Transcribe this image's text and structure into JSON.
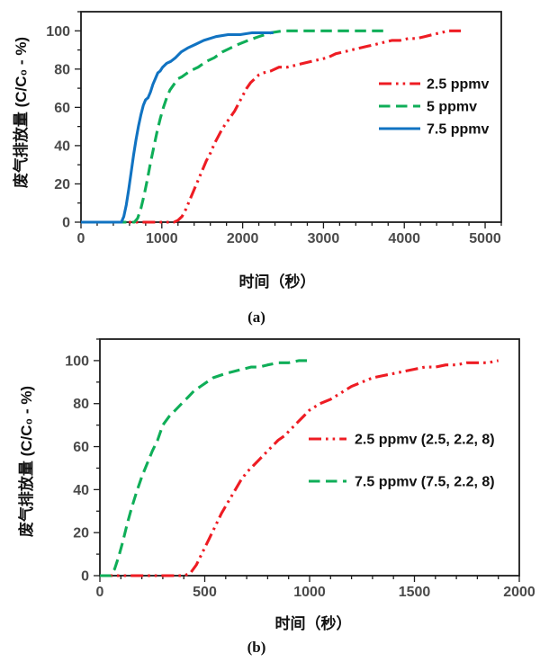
{
  "page": {
    "background": "#ffffff"
  },
  "styles": {
    "axis_color": "#1c1c1c",
    "tick_label_color": "#4a4a4a",
    "legend_text_color": "#111111",
    "series_colors": {
      "red": "#ee1c23",
      "green": "#0fae58",
      "blue": "#1173c2"
    }
  },
  "chart_data": [
    {
      "id": "a",
      "type": "line",
      "caption": "(a)",
      "xlabel": "时间（秒）",
      "ylabel": "废气排放量 (C/C₀ - %)",
      "grid": false,
      "legend_position": "inside-right",
      "x_axis": {
        "min": 0,
        "max": 5200,
        "major_step": 1000,
        "minor_step": 200,
        "tick_labels": [
          0,
          1000,
          2000,
          3000,
          4000,
          5000
        ]
      },
      "y_axis": {
        "min": 0,
        "max": 110,
        "major_step": 20,
        "minor_step": 10,
        "tick_labels": [
          0,
          20,
          40,
          60,
          80,
          100
        ]
      },
      "series": [
        {
          "name": "2.5 ppmv",
          "color": "#ee1c23",
          "line_style": "dash-dot-dot",
          "points": [
            [
              0,
              0
            ],
            [
              250,
              0
            ],
            [
              500,
              0
            ],
            [
              750,
              0
            ],
            [
              1000,
              0
            ],
            [
              1150,
              0
            ],
            [
              1200,
              1
            ],
            [
              1250,
              3
            ],
            [
              1300,
              7
            ],
            [
              1350,
              12
            ],
            [
              1400,
              17
            ],
            [
              1450,
              22
            ],
            [
              1500,
              27
            ],
            [
              1550,
              32
            ],
            [
              1600,
              36
            ],
            [
              1650,
              41
            ],
            [
              1700,
              45
            ],
            [
              1750,
              49
            ],
            [
              1800,
              52
            ],
            [
              1850,
              55
            ],
            [
              1900,
              58
            ],
            [
              1950,
              62
            ],
            [
              2000,
              66
            ],
            [
              2050,
              70
            ],
            [
              2100,
              73
            ],
            [
              2150,
              75
            ],
            [
              2200,
              77
            ],
            [
              2250,
              78
            ],
            [
              2350,
              79
            ],
            [
              2450,
              81
            ],
            [
              2550,
              81
            ],
            [
              2650,
              82
            ],
            [
              2750,
              83
            ],
            [
              2850,
              84
            ],
            [
              2950,
              85
            ],
            [
              3050,
              86
            ],
            [
              3150,
              88
            ],
            [
              3250,
              89
            ],
            [
              3350,
              90
            ],
            [
              3450,
              91
            ],
            [
              3550,
              92
            ],
            [
              3650,
              93
            ],
            [
              3750,
              94
            ],
            [
              3850,
              95
            ],
            [
              3950,
              95
            ],
            [
              4050,
              96
            ],
            [
              4150,
              96
            ],
            [
              4250,
              97
            ],
            [
              4350,
              98
            ],
            [
              4450,
              99
            ],
            [
              4550,
              100
            ],
            [
              4700,
              100
            ]
          ]
        },
        {
          "name": "5 ppmv",
          "color": "#0fae58",
          "line_style": "dashed",
          "points": [
            [
              0,
              0
            ],
            [
              250,
              0
            ],
            [
              500,
              0
            ],
            [
              660,
              0
            ],
            [
              700,
              2
            ],
            [
              740,
              7
            ],
            [
              780,
              14
            ],
            [
              820,
              22
            ],
            [
              860,
              31
            ],
            [
              900,
              39
            ],
            [
              940,
              47
            ],
            [
              980,
              54
            ],
            [
              1020,
              60
            ],
            [
              1060,
              65
            ],
            [
              1100,
              69
            ],
            [
              1150,
              72
            ],
            [
              1200,
              75
            ],
            [
              1250,
              76
            ],
            [
              1350,
              79
            ],
            [
              1450,
              81
            ],
            [
              1550,
              84
            ],
            [
              1650,
              86
            ],
            [
              1750,
              89
            ],
            [
              1850,
              91
            ],
            [
              1950,
              93
            ],
            [
              2070,
              95
            ],
            [
              2200,
              97
            ],
            [
              2350,
              99
            ],
            [
              2500,
              100
            ],
            [
              2750,
              100
            ],
            [
              3000,
              100
            ],
            [
              3250,
              100
            ],
            [
              3500,
              100
            ],
            [
              3800,
              100
            ]
          ]
        },
        {
          "name": "7.5 ppmv",
          "color": "#1173c2",
          "line_style": "solid",
          "points": [
            [
              0,
              0
            ],
            [
              250,
              0
            ],
            [
              500,
              0
            ],
            [
              530,
              3
            ],
            [
              560,
              9
            ],
            [
              590,
              17
            ],
            [
              620,
              26
            ],
            [
              650,
              35
            ],
            [
              680,
              43
            ],
            [
              710,
              50
            ],
            [
              740,
              56
            ],
            [
              770,
              61
            ],
            [
              800,
              64
            ],
            [
              830,
              65
            ],
            [
              860,
              68
            ],
            [
              890,
              72
            ],
            [
              920,
              75
            ],
            [
              950,
              78
            ],
            [
              980,
              79
            ],
            [
              1010,
              81
            ],
            [
              1060,
              83
            ],
            [
              1110,
              84
            ],
            [
              1170,
              86
            ],
            [
              1240,
              89
            ],
            [
              1320,
              91
            ],
            [
              1420,
              93
            ],
            [
              1520,
              95
            ],
            [
              1670,
              97
            ],
            [
              1820,
              98
            ],
            [
              1970,
              98
            ],
            [
              2120,
              99
            ],
            [
              2380,
              99
            ]
          ]
        }
      ]
    },
    {
      "id": "b",
      "type": "line",
      "caption": "(b)",
      "xlabel": "时间（秒）",
      "ylabel": "废气排放量 (C/C₀ - %)",
      "grid": false,
      "legend_position": "inside-right",
      "x_axis": {
        "min": 0,
        "max": 2000,
        "major_step": 500,
        "minor_step": 100,
        "tick_labels": [
          0,
          500,
          1000,
          1500,
          2000
        ]
      },
      "y_axis": {
        "min": 0,
        "max": 110,
        "major_step": 20,
        "minor_step": 10,
        "tick_labels": [
          0,
          20,
          40,
          60,
          80,
          100
        ]
      },
      "series": [
        {
          "name": "2.5 ppmv (2.5, 2.2, 8)",
          "color": "#ee1c23",
          "line_style": "dash-dot-dot",
          "points": [
            [
              0,
              0
            ],
            [
              100,
              0
            ],
            [
              200,
              0
            ],
            [
              300,
              0
            ],
            [
              400,
              0
            ],
            [
              430,
              1
            ],
            [
              460,
              5
            ],
            [
              490,
              11
            ],
            [
              520,
              17
            ],
            [
              550,
              23
            ],
            [
              580,
              29
            ],
            [
              610,
              34
            ],
            [
              640,
              39
            ],
            [
              670,
              44
            ],
            [
              700,
              48
            ],
            [
              730,
              51
            ],
            [
              760,
              54
            ],
            [
              790,
              57
            ],
            [
              820,
              60
            ],
            [
              850,
              63
            ],
            [
              880,
              65
            ],
            [
              910,
              68
            ],
            [
              940,
              71
            ],
            [
              970,
              74
            ],
            [
              1000,
              77
            ],
            [
              1050,
              80
            ],
            [
              1100,
              82
            ],
            [
              1150,
              85
            ],
            [
              1200,
              88
            ],
            [
              1250,
              90
            ],
            [
              1300,
              92
            ],
            [
              1350,
              93
            ],
            [
              1400,
              94
            ],
            [
              1450,
              95
            ],
            [
              1500,
              96
            ],
            [
              1550,
              97
            ],
            [
              1600,
              97
            ],
            [
              1650,
              98
            ],
            [
              1700,
              98
            ],
            [
              1750,
              99
            ],
            [
              1800,
              99
            ],
            [
              1850,
              99
            ],
            [
              1900,
              100
            ]
          ]
        },
        {
          "name": "7.5 ppmv (7.5, 2.2, 8)",
          "color": "#0fae58",
          "line_style": "dashed",
          "points": [
            [
              0,
              0
            ],
            [
              50,
              0
            ],
            [
              70,
              3
            ],
            [
              90,
              9
            ],
            [
              110,
              16
            ],
            [
              130,
              24
            ],
            [
              150,
              31
            ],
            [
              175,
              39
            ],
            [
              200,
              46
            ],
            [
              225,
              52
            ],
            [
              250,
              58
            ],
            [
              275,
              63
            ],
            [
              300,
              70
            ],
            [
              330,
              74
            ],
            [
              360,
              77
            ],
            [
              390,
              80
            ],
            [
              420,
              83
            ],
            [
              450,
              86
            ],
            [
              480,
              88
            ],
            [
              510,
              90
            ],
            [
              540,
              92
            ],
            [
              570,
              93
            ],
            [
              600,
              94
            ],
            [
              640,
              95
            ],
            [
              680,
              96
            ],
            [
              720,
              97
            ],
            [
              760,
              97
            ],
            [
              800,
              98
            ],
            [
              850,
              99
            ],
            [
              900,
              99
            ],
            [
              950,
              100
            ],
            [
              1000,
              100
            ]
          ]
        }
      ]
    }
  ]
}
